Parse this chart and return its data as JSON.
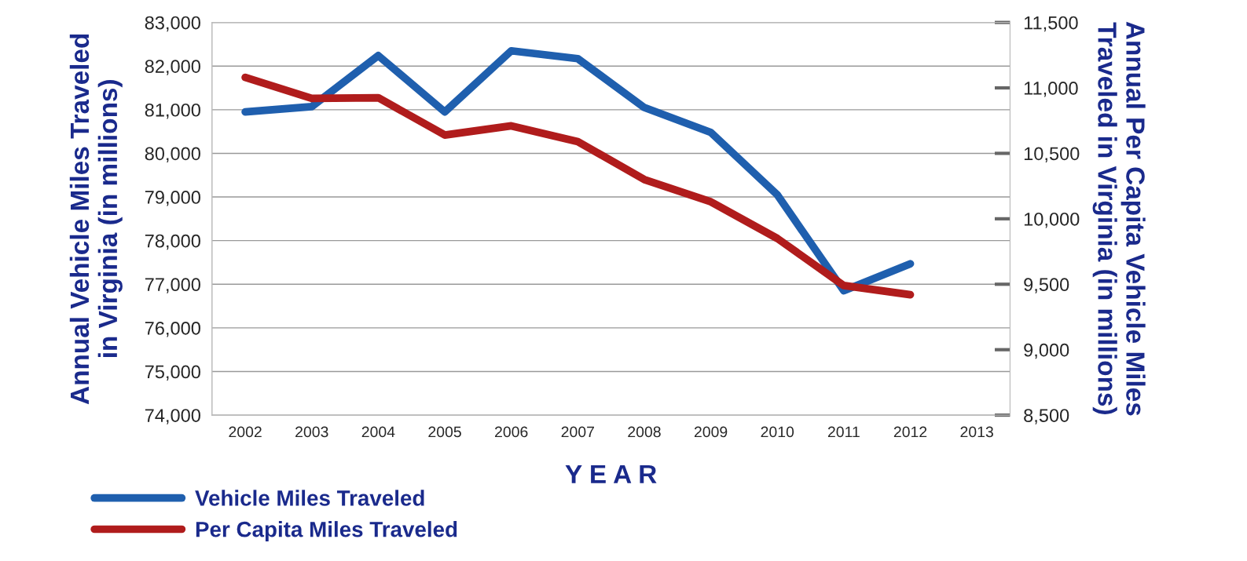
{
  "chart_data": {
    "type": "line",
    "categories": [
      "2002",
      "2003",
      "2004",
      "2005",
      "2006",
      "2007",
      "2008",
      "2009",
      "2010",
      "2011",
      "2012",
      "2013"
    ],
    "xlabel": "Y E A R",
    "ylabel": "Annual Vehicle Miles Traveled\nin Virginia (in millions)",
    "y2label": "Annual Per Capita Vehicle Miles\nTraveled in Virginia (in millions)",
    "ylim": [
      74000,
      83000
    ],
    "yticks": [
      {
        "value": 74000,
        "label": "74,000"
      },
      {
        "value": 75000,
        "label": "75,000"
      },
      {
        "value": 76000,
        "label": "76,000"
      },
      {
        "value": 77000,
        "label": "77,000"
      },
      {
        "value": 78000,
        "label": "78,000"
      },
      {
        "value": 79000,
        "label": "79,000"
      },
      {
        "value": 80000,
        "label": "80,000"
      },
      {
        "value": 81000,
        "label": "81,000"
      },
      {
        "value": 82000,
        "label": "82,000"
      },
      {
        "value": 83000,
        "label": "83,000"
      }
    ],
    "y2lim": [
      8500,
      11500
    ],
    "y2ticks": [
      {
        "value": 8500,
        "label": "8,500"
      },
      {
        "value": 9000,
        "label": "9,000"
      },
      {
        "value": 9500,
        "label": "9,500"
      },
      {
        "value": 10000,
        "label": "10,000"
      },
      {
        "value": 10500,
        "label": "10,500"
      },
      {
        "value": 11000,
        "label": "11,000"
      },
      {
        "value": 11500,
        "label": "11,500"
      }
    ],
    "grid": "y",
    "legend": "bottom left",
    "marker": "none",
    "line_style": "solid",
    "series": [
      {
        "name": "Vehicle Miles Traveled",
        "color": "#1f5fae",
        "values": [
          80950,
          81070,
          82240,
          80950,
          82350,
          82170,
          81050,
          80480,
          79050,
          76850,
          77470,
          null
        ]
      },
      {
        "name": "Per Capita Miles Traveled",
        "color": "#b01c1c",
        "axis": "y2",
        "values": [
          11080,
          10920,
          10925,
          10640,
          10710,
          10590,
          10300,
          10130,
          9850,
          9490,
          9420,
          null
        ]
      }
    ]
  }
}
